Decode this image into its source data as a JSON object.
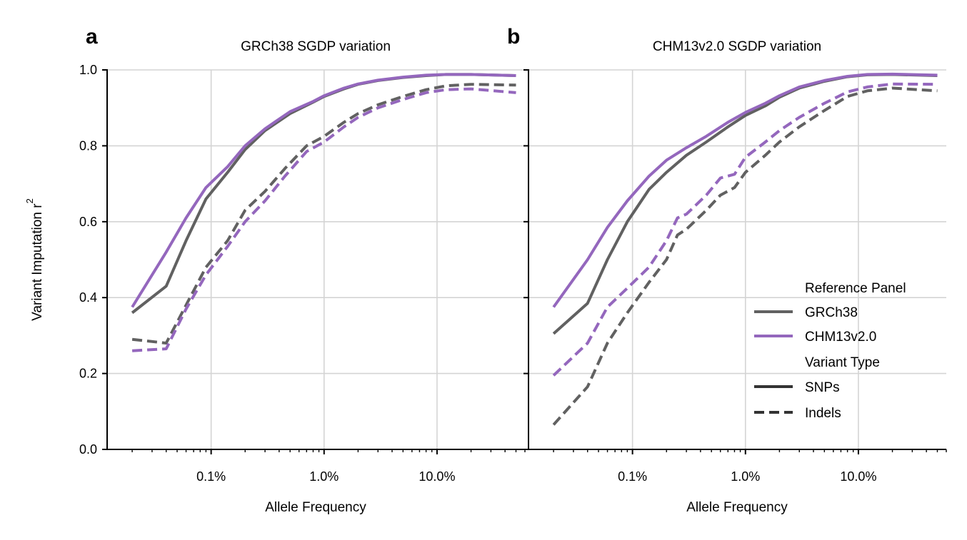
{
  "colors": {
    "grch38": "#616161",
    "chm13": "#9467bd",
    "legend_style": "#333333",
    "grid": "#d4d4d4"
  },
  "shared": {
    "ylabel": "Variant Imputation r",
    "ylabel_superscript": "2",
    "xlabel": "Allele Frequency",
    "yticks": [
      0.0,
      0.2,
      0.4,
      0.6,
      0.8,
      1.0
    ],
    "ytick_labels": [
      "0.0",
      "0.2",
      "0.4",
      "0.6",
      "0.8",
      "1.0"
    ],
    "xticks": [
      0.1,
      1.0,
      10.0
    ],
    "xtick_labels": [
      "0.1%",
      "1.0%",
      "10.0%"
    ]
  },
  "legend": {
    "placement": "lower-right of panel b",
    "groups": [
      {
        "heading": "Reference Panel",
        "entries": [
          {
            "label": "GRCh38",
            "color": "#616161",
            "style": "solid"
          },
          {
            "label": "CHM13v2.0",
            "color": "#9467bd",
            "style": "solid"
          }
        ]
      },
      {
        "heading": "Variant Type",
        "entries": [
          {
            "label": "SNPs",
            "color": "#333333",
            "style": "solid"
          },
          {
            "label": "Indels",
            "color": "#333333",
            "style": "dashed"
          }
        ]
      }
    ]
  },
  "chart_data": [
    {
      "type": "line",
      "panel_letter": "a",
      "title": "GRCh38 SGDP variation",
      "xlabel": "Allele Frequency",
      "ylabel": "Variant Imputation r²",
      "xscale": "log",
      "xlim": [
        0.012,
        60
      ],
      "ylim": [
        0,
        1
      ],
      "grid": true,
      "series": [
        {
          "name": "GRCh38",
          "variant": "SNPs",
          "color": "#616161",
          "dashed": false,
          "x": [
            0.02,
            0.04,
            0.06,
            0.09,
            0.14,
            0.2,
            0.3,
            0.5,
            0.8,
            1.0,
            1.5,
            2.0,
            3.0,
            5.0,
            8.0,
            12.0,
            20.0,
            50.0
          ],
          "y": [
            0.36,
            0.43,
            0.55,
            0.66,
            0.73,
            0.79,
            0.84,
            0.885,
            0.915,
            0.93,
            0.95,
            0.962,
            0.972,
            0.98,
            0.985,
            0.988,
            0.988,
            0.985
          ]
        },
        {
          "name": "CHM13v2.0",
          "variant": "SNPs",
          "color": "#9467bd",
          "dashed": false,
          "x": [
            0.02,
            0.04,
            0.06,
            0.09,
            0.14,
            0.2,
            0.3,
            0.5,
            0.8,
            1.0,
            1.5,
            2.0,
            3.0,
            5.0,
            8.0,
            12.0,
            20.0,
            50.0
          ],
          "y": [
            0.375,
            0.52,
            0.61,
            0.69,
            0.745,
            0.8,
            0.845,
            0.89,
            0.917,
            0.932,
            0.952,
            0.963,
            0.973,
            0.981,
            0.986,
            0.988,
            0.988,
            0.985
          ]
        },
        {
          "name": "GRCh38",
          "variant": "Indels",
          "color": "#616161",
          "dashed": true,
          "x": [
            0.02,
            0.04,
            0.06,
            0.09,
            0.14,
            0.2,
            0.3,
            0.45,
            0.7,
            1.0,
            1.5,
            2.0,
            3.0,
            5.0,
            8.0,
            12.0,
            20.0,
            50.0
          ],
          "y": [
            0.29,
            0.28,
            0.38,
            0.48,
            0.55,
            0.63,
            0.68,
            0.74,
            0.8,
            0.825,
            0.862,
            0.885,
            0.908,
            0.93,
            0.948,
            0.958,
            0.962,
            0.96
          ]
        },
        {
          "name": "CHM13v2.0",
          "variant": "Indels",
          "color": "#9467bd",
          "dashed": true,
          "x": [
            0.02,
            0.04,
            0.06,
            0.09,
            0.14,
            0.2,
            0.3,
            0.45,
            0.7,
            1.0,
            1.5,
            2.0,
            3.0,
            5.0,
            8.0,
            12.0,
            20.0,
            50.0
          ],
          "y": [
            0.26,
            0.265,
            0.37,
            0.46,
            0.535,
            0.6,
            0.655,
            0.72,
            0.785,
            0.81,
            0.85,
            0.875,
            0.9,
            0.922,
            0.94,
            0.948,
            0.95,
            0.94
          ]
        }
      ]
    },
    {
      "type": "line",
      "panel_letter": "b",
      "title": "CHM13v2.0 SGDP variation",
      "xlabel": "Allele Frequency",
      "ylabel": "",
      "xscale": "log",
      "xlim": [
        0.012,
        60
      ],
      "ylim": [
        0,
        1
      ],
      "grid": true,
      "series": [
        {
          "name": "GRCh38",
          "variant": "SNPs",
          "color": "#616161",
          "dashed": false,
          "x": [
            0.02,
            0.04,
            0.06,
            0.09,
            0.14,
            0.2,
            0.3,
            0.45,
            0.7,
            1.0,
            1.5,
            2.0,
            3.0,
            5.0,
            8.0,
            12.0,
            20.0,
            50.0
          ],
          "y": [
            0.305,
            0.385,
            0.5,
            0.6,
            0.685,
            0.73,
            0.775,
            0.81,
            0.85,
            0.88,
            0.905,
            0.928,
            0.952,
            0.97,
            0.982,
            0.987,
            0.988,
            0.985
          ]
        },
        {
          "name": "CHM13v2.0",
          "variant": "SNPs",
          "color": "#9467bd",
          "dashed": false,
          "x": [
            0.02,
            0.04,
            0.06,
            0.09,
            0.14,
            0.2,
            0.3,
            0.45,
            0.7,
            1.0,
            1.5,
            2.0,
            3.0,
            5.0,
            8.0,
            12.0,
            20.0,
            50.0
          ],
          "y": [
            0.375,
            0.5,
            0.585,
            0.655,
            0.72,
            0.762,
            0.795,
            0.825,
            0.862,
            0.888,
            0.912,
            0.932,
            0.955,
            0.972,
            0.983,
            0.988,
            0.989,
            0.986
          ]
        },
        {
          "name": "GRCh38",
          "variant": "Indels",
          "color": "#616161",
          "dashed": true,
          "x": [
            0.02,
            0.04,
            0.06,
            0.09,
            0.14,
            0.2,
            0.25,
            0.3,
            0.45,
            0.6,
            0.8,
            1.0,
            1.5,
            2.0,
            3.0,
            5.0,
            8.0,
            12.0,
            20.0,
            50.0
          ],
          "y": [
            0.065,
            0.165,
            0.28,
            0.36,
            0.44,
            0.5,
            0.565,
            0.58,
            0.63,
            0.67,
            0.69,
            0.73,
            0.775,
            0.81,
            0.85,
            0.893,
            0.93,
            0.945,
            0.952,
            0.945
          ]
        },
        {
          "name": "CHM13v2.0",
          "variant": "Indels",
          "color": "#9467bd",
          "dashed": true,
          "x": [
            0.02,
            0.04,
            0.06,
            0.09,
            0.14,
            0.2,
            0.25,
            0.3,
            0.45,
            0.6,
            0.8,
            1.0,
            1.5,
            2.0,
            3.0,
            5.0,
            8.0,
            12.0,
            20.0,
            50.0
          ],
          "y": [
            0.195,
            0.28,
            0.375,
            0.425,
            0.48,
            0.55,
            0.61,
            0.62,
            0.67,
            0.715,
            0.725,
            0.77,
            0.81,
            0.84,
            0.875,
            0.912,
            0.942,
            0.955,
            0.963,
            0.962
          ]
        }
      ]
    }
  ]
}
